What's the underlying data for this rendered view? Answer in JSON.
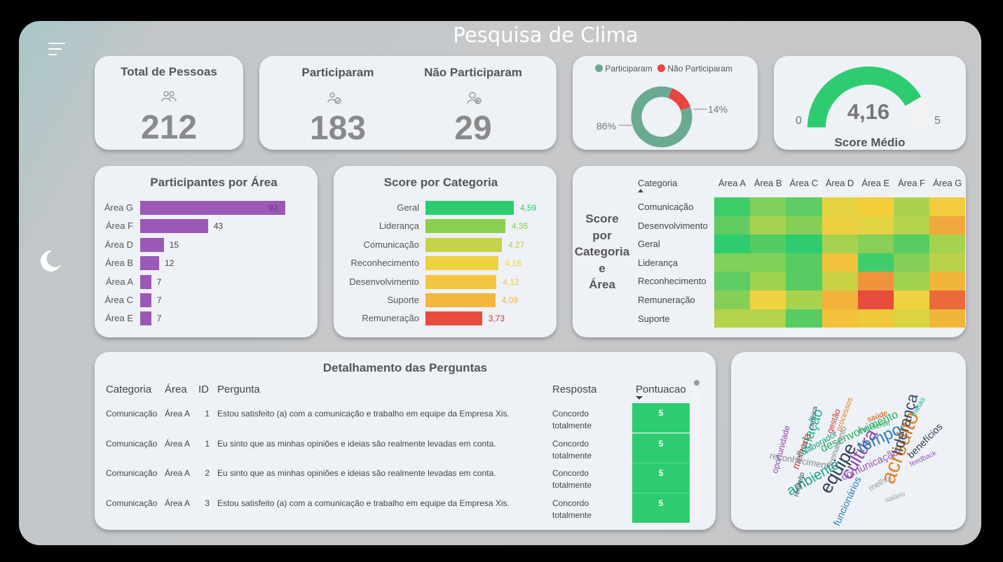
{
  "title": "Pesquisa de Clima",
  "kpi_total": {
    "label": "Total de Pessoas",
    "value": "212",
    "icon": "people-icon"
  },
  "kpi_part": {
    "participaram_label": "Participaram",
    "participaram_value": "183",
    "nao_label": "Não Participaram",
    "nao_value": "29"
  },
  "donut": {
    "legend": [
      "Participaram",
      "Não Participaram"
    ],
    "colors": [
      "#6aaa91",
      "#e8453c"
    ],
    "pct_labels": [
      "86%",
      "14%"
    ],
    "values": [
      86,
      14
    ]
  },
  "gauge": {
    "value": "4,16",
    "min": "0",
    "max": "5",
    "label": "Score Médio",
    "fraction": 0.832,
    "color": "#2ecc71"
  },
  "participantes": {
    "title": "Participantes por Área",
    "rows": [
      {
        "label": "Área G",
        "value": "92",
        "n": 92
      },
      {
        "label": "Área F",
        "value": "43",
        "n": 43
      },
      {
        "label": "Área D",
        "value": "15",
        "n": 15
      },
      {
        "label": "Área B",
        "value": "12",
        "n": 12
      },
      {
        "label": "Área A",
        "value": "7",
        "n": 7
      },
      {
        "label": "Área C",
        "value": "7",
        "n": 7
      },
      {
        "label": "Área E",
        "value": "7",
        "n": 7
      }
    ],
    "color": "#9b59b6"
  },
  "score_cat": {
    "title": "Score por Categoria",
    "rows": [
      {
        "label": "Geral",
        "value": "4,59",
        "n": 4.59,
        "color": "#2ecc71"
      },
      {
        "label": "Liderança",
        "value": "4,36",
        "n": 4.36,
        "color": "#8bcf4f"
      },
      {
        "label": "Comunicação",
        "value": "4,27",
        "n": 4.27,
        "color": "#c5d147"
      },
      {
        "label": "Reconhecimento",
        "value": "4,18",
        "n": 4.18,
        "color": "#eed33f"
      },
      {
        "label": "Desenvolvimento",
        "value": "4,12",
        "n": 4.12,
        "color": "#f4c542"
      },
      {
        "label": "Suporte",
        "value": "4,09",
        "n": 4.09,
        "color": "#f3b73f"
      },
      {
        "label": "Remuneração",
        "value": "3,73",
        "n": 3.73,
        "color": "#e74c3c"
      }
    ]
  },
  "heatmap": {
    "title_lines": [
      "Score",
      "por",
      "Categoria",
      "e",
      "Área"
    ],
    "sort_label": "Categoria",
    "cols": [
      "Área A",
      "Área B",
      "Área C",
      "Área D",
      "Área E",
      "Área F",
      "Área G"
    ],
    "rows": [
      "Comunicação",
      "Desenvolvimento",
      "Geral",
      "Liderança",
      "Reconhecimento",
      "Remuneração",
      "Suporte"
    ],
    "colors": [
      [
        "#3fcc6a",
        "#7fd15a",
        "#5ccc63",
        "#e5d440",
        "#f4cd3b",
        "#a9d24f",
        "#f2cd3b"
      ],
      [
        "#62cc63",
        "#a4d24f",
        "#86cf56",
        "#eccf3c",
        "#e1d342",
        "#b4d24c",
        "#f0a83a"
      ],
      [
        "#2ecc6d",
        "#52cd64",
        "#2ecc6d",
        "#a6d24f",
        "#88cf57",
        "#57cc63",
        "#a6d24f"
      ],
      [
        "#7fd15a",
        "#7fd15a",
        "#57cc63",
        "#f2c23b",
        "#3fcc6a",
        "#84cf57",
        "#bad24a"
      ],
      [
        "#5ccc63",
        "#9fd251",
        "#57cc63",
        "#c9d145",
        "#ef943a",
        "#9fd251",
        "#f0b63a"
      ],
      [
        "#86cf56",
        "#eed33f",
        "#a9d24f",
        "#f2b23b",
        "#e74c3c",
        "#eed33f",
        "#eb6a3a"
      ],
      [
        "#b4d24c",
        "#b4d24c",
        "#57cc63",
        "#f2c23b",
        "#f0c93b",
        "#dcd343",
        "#f0b63a"
      ]
    ]
  },
  "perguntas": {
    "title": "Detalhamento das Perguntas",
    "headers": {
      "categoria": "Categoria",
      "area": "Área",
      "id": "ID",
      "pergunta": "Pergunta",
      "resposta": "Resposta",
      "pontuacao": "Pontuacao"
    },
    "rows": [
      {
        "categoria": "Comunicação",
        "area": "Área A",
        "id": "1",
        "pergunta": "Estou satisfeito (a) com a comunicação e trabalho em equipe da Empresa Xis.",
        "resposta1": "Concordo",
        "resposta2": "totalmente",
        "pontuacao": "5"
      },
      {
        "categoria": "Comunicação",
        "area": "Área A",
        "id": "1",
        "pergunta": "Eu sinto que as minhas opiniões e ideias são realmente levadas em conta.",
        "resposta1": "Concordo",
        "resposta2": "totalmente",
        "pontuacao": "5"
      },
      {
        "categoria": "Comunicação",
        "area": "Área A",
        "id": "2",
        "pergunta": "Eu sinto que as minhas opiniões e ideias são realmente levadas em conta.",
        "resposta1": "Concordo",
        "resposta2": "totalmente",
        "pontuacao": "5"
      },
      {
        "categoria": "Comunicação",
        "area": "Área A",
        "id": "3",
        "pergunta": "Estou satisfeito (a) com a comunicação e trabalho em equipe da Empresa Xis.",
        "resposta1": "Concordo",
        "resposta2": "totalmente",
        "pontuacao": "5"
      }
    ]
  },
  "wordcloud": {
    "words": [
      {
        "t": "cultura",
        "c": "#8e44ad"
      },
      {
        "t": "acredito",
        "c": "#e67e22"
      },
      {
        "t": "equipe",
        "c": "#2c3e50"
      },
      {
        "t": "ambiente",
        "c": "#16a085"
      },
      {
        "t": "liderança",
        "c": "#34495e"
      },
      {
        "t": "tempo",
        "c": "#2980b9"
      },
      {
        "t": "desenvolvimento",
        "c": "#27ae60"
      },
      {
        "t": "comunicação",
        "c": "#9b59b6"
      },
      {
        "t": "relação",
        "c": "#1abc9c"
      },
      {
        "t": "melhoria",
        "c": "#c0392b"
      },
      {
        "t": "reconhecimento",
        "c": "#7f8c8d"
      },
      {
        "t": "benefícios",
        "c": "#2c3e50"
      },
      {
        "t": "funcionários",
        "c": "#2980b9"
      },
      {
        "t": "melhor",
        "c": "#95a5a6"
      },
      {
        "t": "colaborador",
        "c": "#16a085"
      },
      {
        "t": "oportunidade",
        "c": "#8e44ad"
      },
      {
        "t": "excelente",
        "c": "#27ae60"
      },
      {
        "t": "saúde",
        "c": "#d35400"
      },
      {
        "t": "treinamento",
        "c": "#7f8c8d"
      },
      {
        "t": "respeito",
        "c": "#2c3e50"
      },
      {
        "t": "gestão",
        "c": "#c0392b"
      },
      {
        "t": "metas",
        "c": "#1abc9c"
      },
      {
        "t": "carreira",
        "c": "#34495e"
      },
      {
        "t": "feedback",
        "c": "#9b59b6"
      },
      {
        "t": "processos",
        "c": "#e67e22"
      },
      {
        "t": "salário",
        "c": "#95a5a6"
      }
    ]
  }
}
